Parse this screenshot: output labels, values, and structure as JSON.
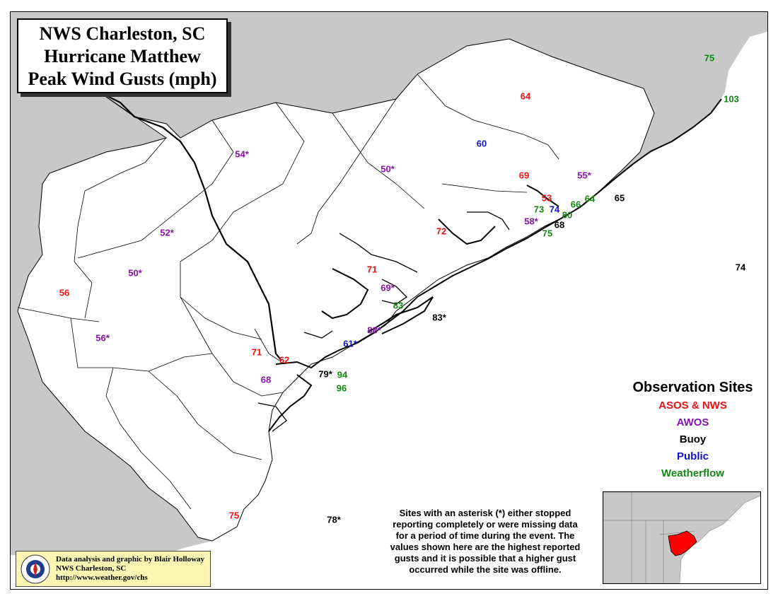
{
  "title": {
    "line1": "NWS Charleston, SC",
    "line2": "Hurricane Matthew",
    "line3": "Peak Wind Gusts (mph)"
  },
  "colors": {
    "asos_nws": "#ee1111",
    "awos": "#8811aa",
    "buoy": "#000000",
    "public": "#1111cc",
    "weatherflow": "#118811",
    "land_context": "#c8c8c8",
    "cwa_fill": "#ffffff",
    "highlight": "#ff0000"
  },
  "legend": {
    "title": "Observation Sites",
    "items": [
      {
        "key": "asos_nws",
        "label": "ASOS & NWS"
      },
      {
        "key": "awos",
        "label": "AWOS"
      },
      {
        "key": "buoy",
        "label": "Buoy"
      },
      {
        "key": "public",
        "label": "Public"
      },
      {
        "key": "weatherflow",
        "label": "Weatherflow"
      }
    ]
  },
  "note": {
    "lines": [
      "Sites with an asterisk (*) either stopped",
      "reporting completely or were missing data",
      "for a period of time during the event. The",
      "values shown here are the highest reported",
      "gusts and it is possible that a higher gust",
      "occurred while the site was offline."
    ]
  },
  "credit": {
    "line1": "Data analysis and graphic by Blair Holloway",
    "line2": "NWS Charleston, SC",
    "line3": "http://www.weather.gov/chs",
    "logo_text": "NATIONAL WEATHER SERVICE",
    "logo_icon": "nws-logo"
  },
  "observations": [
    {
      "value": "75",
      "type": "weatherflow"
    },
    {
      "value": "103",
      "type": "weatherflow"
    },
    {
      "value": "64",
      "type": "asos_nws"
    },
    {
      "value": "60",
      "type": "public"
    },
    {
      "value": "54*",
      "type": "awos"
    },
    {
      "value": "50*",
      "type": "awos"
    },
    {
      "value": "69",
      "type": "asos_nws"
    },
    {
      "value": "55*",
      "type": "awos"
    },
    {
      "value": "53",
      "type": "asos_nws"
    },
    {
      "value": "64",
      "type": "weatherflow"
    },
    {
      "value": "65",
      "type": "buoy"
    },
    {
      "value": "73",
      "type": "weatherflow"
    },
    {
      "value": "74",
      "type": "public"
    },
    {
      "value": "66",
      "type": "weatherflow"
    },
    {
      "value": "80",
      "type": "weatherflow"
    },
    {
      "value": "58*",
      "type": "awos"
    },
    {
      "value": "68",
      "type": "buoy"
    },
    {
      "value": "75",
      "type": "weatherflow"
    },
    {
      "value": "52*",
      "type": "awos"
    },
    {
      "value": "72",
      "type": "asos_nws"
    },
    {
      "value": "50*",
      "type": "awos"
    },
    {
      "value": "71",
      "type": "asos_nws"
    },
    {
      "value": "56",
      "type": "asos_nws"
    },
    {
      "value": "69*",
      "type": "awos"
    },
    {
      "value": "74",
      "type": "buoy"
    },
    {
      "value": "83",
      "type": "weatherflow"
    },
    {
      "value": "83*",
      "type": "buoy"
    },
    {
      "value": "56*",
      "type": "awos"
    },
    {
      "value": "88*",
      "type": "awos"
    },
    {
      "value": "61*",
      "type": "public"
    },
    {
      "value": "71",
      "type": "asos_nws"
    },
    {
      "value": "62",
      "type": "asos_nws"
    },
    {
      "value": "79*",
      "type": "buoy"
    },
    {
      "value": "94",
      "type": "weatherflow"
    },
    {
      "value": "68",
      "type": "awos"
    },
    {
      "value": "96",
      "type": "weatherflow"
    },
    {
      "value": "75",
      "type": "asos_nws"
    },
    {
      "value": "78*",
      "type": "buoy"
    }
  ]
}
